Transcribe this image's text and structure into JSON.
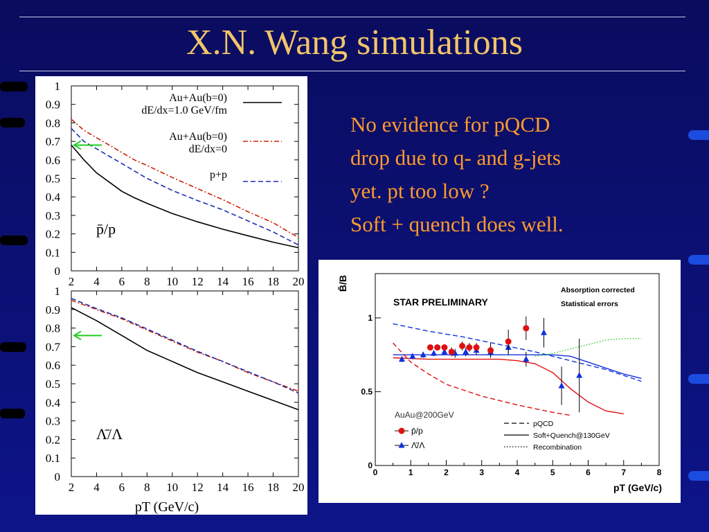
{
  "slide": {
    "title": "X.N. Wang simulations",
    "notes": [
      "No evidence for pQCD",
      "drop due to q- and g-jets",
      "yet. pt too low ?",
      "Soft + quench does well."
    ],
    "colors": {
      "background": "#0b0f6e",
      "title": "#f2c46a",
      "notes": "#ff9a2c"
    }
  },
  "chart_data": [
    {
      "type": "line",
      "panel_label": "p̄/p",
      "xlabel": "",
      "ylabel": "",
      "xlim": [
        2,
        20
      ],
      "ylim": [
        0,
        1
      ],
      "x_ticks": [
        "2",
        "4",
        "6",
        "8",
        "10",
        "12",
        "14",
        "16",
        "18",
        "20"
      ],
      "y_ticks": [
        "0",
        "0.1",
        "0.2",
        "0.3",
        "0.4",
        "0.5",
        "0.6",
        "0.7",
        "0.8",
        "0.9",
        "1"
      ],
      "legend": [
        {
          "lines": [
            "Au+Au(b=0)",
            "dE/dx=1.0 GeV/fm"
          ],
          "color": "#000000",
          "dash": "solid"
        },
        {
          "lines": [
            "Au+Au(b=0)",
            "dE/dx=0"
          ],
          "color": "#cc2200",
          "dash": "dashdot"
        },
        {
          "lines": [
            "p+p"
          ],
          "color": "#1a2fb0",
          "dash": "dashed"
        }
      ],
      "arrow": {
        "y": 0.68,
        "color": "#22cc22"
      },
      "series": [
        {
          "x": [
            2,
            3,
            4,
            5,
            6,
            7,
            8,
            10,
            12,
            14,
            16,
            18,
            20
          ],
          "values": [
            0.68,
            0.6,
            0.53,
            0.48,
            0.43,
            0.395,
            0.365,
            0.31,
            0.265,
            0.225,
            0.19,
            0.155,
            0.125
          ]
        },
        {
          "x": [
            2,
            3,
            4,
            5,
            6,
            7,
            8,
            10,
            12,
            14,
            16,
            18,
            20
          ],
          "values": [
            0.82,
            0.76,
            0.72,
            0.68,
            0.64,
            0.6,
            0.57,
            0.505,
            0.445,
            0.385,
            0.32,
            0.26,
            0.18
          ]
        },
        {
          "x": [
            2,
            3,
            4,
            5,
            6,
            7,
            8,
            10,
            12,
            14,
            16,
            18,
            20
          ],
          "values": [
            0.77,
            0.7,
            0.66,
            0.62,
            0.58,
            0.54,
            0.5,
            0.435,
            0.38,
            0.33,
            0.27,
            0.21,
            0.14
          ]
        }
      ]
    },
    {
      "type": "line",
      "panel_label": "Λ̄/Λ",
      "xlabel": "pT (GeV/c)",
      "ylabel": "",
      "xlim": [
        2,
        20
      ],
      "ylim": [
        0,
        1
      ],
      "x_ticks": [
        "2",
        "4",
        "6",
        "8",
        "10",
        "12",
        "14",
        "16",
        "18",
        "20"
      ],
      "y_ticks": [
        "0",
        "0.1",
        "0.2",
        "0.3",
        "0.4",
        "0.5",
        "0.6",
        "0.7",
        "0.8",
        "0.9",
        "1"
      ],
      "arrow": {
        "y": 0.76,
        "color": "#22cc22"
      },
      "series": [
        {
          "x": [
            2,
            4,
            6,
            8,
            10,
            12,
            14,
            16,
            18,
            20
          ],
          "values": [
            0.91,
            0.84,
            0.76,
            0.68,
            0.62,
            0.56,
            0.51,
            0.46,
            0.41,
            0.36
          ]
        },
        {
          "x": [
            2,
            4,
            6,
            8,
            10,
            12,
            14,
            16,
            18,
            20
          ],
          "values": [
            0.95,
            0.9,
            0.85,
            0.79,
            0.73,
            0.67,
            0.62,
            0.56,
            0.51,
            0.46
          ]
        },
        {
          "x": [
            2,
            4,
            6,
            8,
            10,
            12,
            14,
            16,
            18,
            20
          ],
          "values": [
            0.96,
            0.905,
            0.855,
            0.795,
            0.735,
            0.675,
            0.62,
            0.565,
            0.51,
            0.45
          ]
        }
      ]
    },
    {
      "type": "scatter",
      "title": "STAR PRELIMINARY",
      "annotation": [
        "Absorption corrected",
        "Statistical errors"
      ],
      "system_label": "AuAu@200GeV",
      "xlabel": "pT (GeV/c)",
      "ylabel": "B̄/B",
      "xlim": [
        0,
        8
      ],
      "ylim": [
        0,
        1.3
      ],
      "x_ticks": [
        "0",
        "1",
        "2",
        "3",
        "4",
        "5",
        "6",
        "7",
        "8"
      ],
      "y_ticks": [
        {
          "v": 0,
          "label": "0"
        },
        {
          "v": 0.5,
          "label": "0.5"
        },
        {
          "v": 1,
          "label": "1"
        }
      ],
      "legend_points": [
        {
          "label": "p̄/p",
          "marker": "circle",
          "color": "#e01010"
        },
        {
          "label": "Λ̄/Λ",
          "marker": "triangle",
          "color": "#1030e0"
        }
      ],
      "legend_lines": [
        {
          "label": "pQCD",
          "dash": "dashed"
        },
        {
          "label": "Soft+Quench@130GeV",
          "dash": "solid"
        },
        {
          "label": "Recombination",
          "dash": "dotted"
        }
      ],
      "points_pbar": {
        "x": [
          1.55,
          1.75,
          1.95,
          2.15,
          2.45,
          2.65,
          2.85,
          3.25,
          3.75,
          4.25
        ],
        "values": [
          0.8,
          0.8,
          0.8,
          0.77,
          0.81,
          0.8,
          0.8,
          0.78,
          0.84,
          0.93
        ],
        "err": [
          0.02,
          0.02,
          0.02,
          0.03,
          0.03,
          0.03,
          0.03,
          0.05,
          0.08,
          0.08
        ]
      },
      "points_lambda": {
        "x": [
          0.75,
          1.05,
          1.35,
          1.65,
          1.95,
          2.25,
          2.55,
          2.85,
          3.25,
          3.75,
          4.25,
          4.75,
          5.25,
          5.75
        ],
        "values": [
          0.72,
          0.74,
          0.75,
          0.76,
          0.77,
          0.76,
          0.77,
          0.78,
          0.77,
          0.8,
          0.72,
          0.9,
          0.54,
          0.61
        ],
        "err": [
          0.02,
          0.02,
          0.02,
          0.02,
          0.02,
          0.03,
          0.03,
          0.03,
          0.04,
          0.05,
          0.05,
          0.1,
          0.13,
          0.25
        ]
      },
      "curves": [
        {
          "name": "pQCD",
          "color": "#1030e0",
          "dash": "dashed",
          "x": [
            0.5,
            1.5,
            2.5,
            3.5,
            4.5,
            5.5,
            6.5,
            7.5
          ],
          "values": [
            0.96,
            0.91,
            0.87,
            0.82,
            0.77,
            0.71,
            0.65,
            0.57
          ]
        },
        {
          "name": "Soft+Quench@130GeV",
          "color": "#1030e0",
          "dash": "solid",
          "x": [
            0.5,
            1.5,
            2.5,
            3.5,
            4.5,
            5,
            5.5,
            6,
            6.5,
            7,
            7.5
          ],
          "values": [
            0.75,
            0.75,
            0.75,
            0.75,
            0.75,
            0.75,
            0.74,
            0.7,
            0.66,
            0.62,
            0.59
          ]
        },
        {
          "name": "Recombination",
          "color": "#22cc22",
          "dash": "dotted",
          "x": [
            4.5,
            5,
            5.5,
            6,
            6.5,
            7,
            7.5
          ],
          "values": [
            0.74,
            0.76,
            0.79,
            0.82,
            0.85,
            0.86,
            0.86
          ]
        },
        {
          "name": "pQCD",
          "color": "#e01010",
          "dash": "dashed",
          "x": [
            0.5,
            1,
            1.5,
            2,
            3,
            4,
            5,
            5.5
          ],
          "values": [
            0.83,
            0.7,
            0.62,
            0.55,
            0.47,
            0.41,
            0.36,
            0.34
          ]
        },
        {
          "name": "Soft+Quench@130GeV",
          "color": "#e01010",
          "dash": "solid",
          "x": [
            0.5,
            1.5,
            2.5,
            3.5,
            4,
            4.5,
            5,
            5.5,
            6,
            6.5,
            7
          ],
          "values": [
            0.73,
            0.72,
            0.72,
            0.72,
            0.71,
            0.69,
            0.63,
            0.52,
            0.43,
            0.37,
            0.35
          ]
        }
      ]
    }
  ]
}
